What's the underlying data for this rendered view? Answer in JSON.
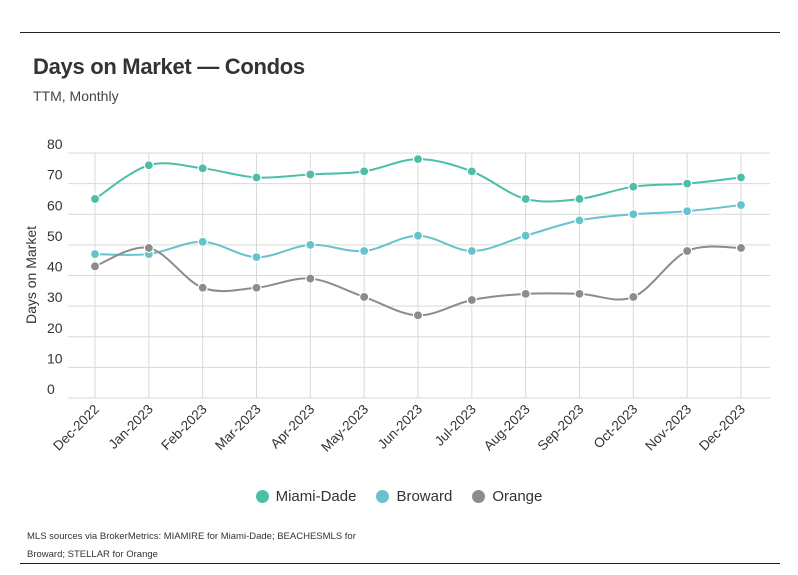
{
  "title": "Days on Market — Condos",
  "subtitle": "TTM, Monthly",
  "source_note": "MLS sources via BrokerMetrics: MIAMIRE for Miami-Dade; BEACHESMLS for Broward; STELLAR for Orange",
  "chart_data": {
    "type": "line",
    "title": "Days on Market — Condos",
    "subtitle": "TTM, Monthly",
    "ylabel": "Days on Market",
    "xlabel": "",
    "ylim": [
      0,
      80
    ],
    "yticks": [
      0,
      10,
      20,
      30,
      40,
      50,
      60,
      70,
      80
    ],
    "grid": true,
    "legend_position": "bottom",
    "categories": [
      "Dec-2022",
      "Jan-2023",
      "Feb-2023",
      "Mar-2023",
      "Apr-2023",
      "May-2023",
      "Jun-2023",
      "Jul-2023",
      "Aug-2023",
      "Sep-2023",
      "Oct-2023",
      "Nov-2023",
      "Dec-2023"
    ],
    "series": [
      {
        "name": "Miami-Dade",
        "color": "#4dbfa8",
        "values": [
          65,
          76,
          75,
          72,
          73,
          74,
          78,
          74,
          65,
          65,
          69,
          70,
          72
        ]
      },
      {
        "name": "Broward",
        "color": "#66c2cc",
        "values": [
          47,
          47,
          51,
          46,
          50,
          48,
          53,
          48,
          53,
          58,
          60,
          61,
          63
        ]
      },
      {
        "name": "Orange",
        "color": "#8c8c8c",
        "values": [
          43,
          49,
          36,
          36,
          39,
          33,
          27,
          32,
          34,
          34,
          33,
          48,
          49
        ]
      }
    ]
  }
}
